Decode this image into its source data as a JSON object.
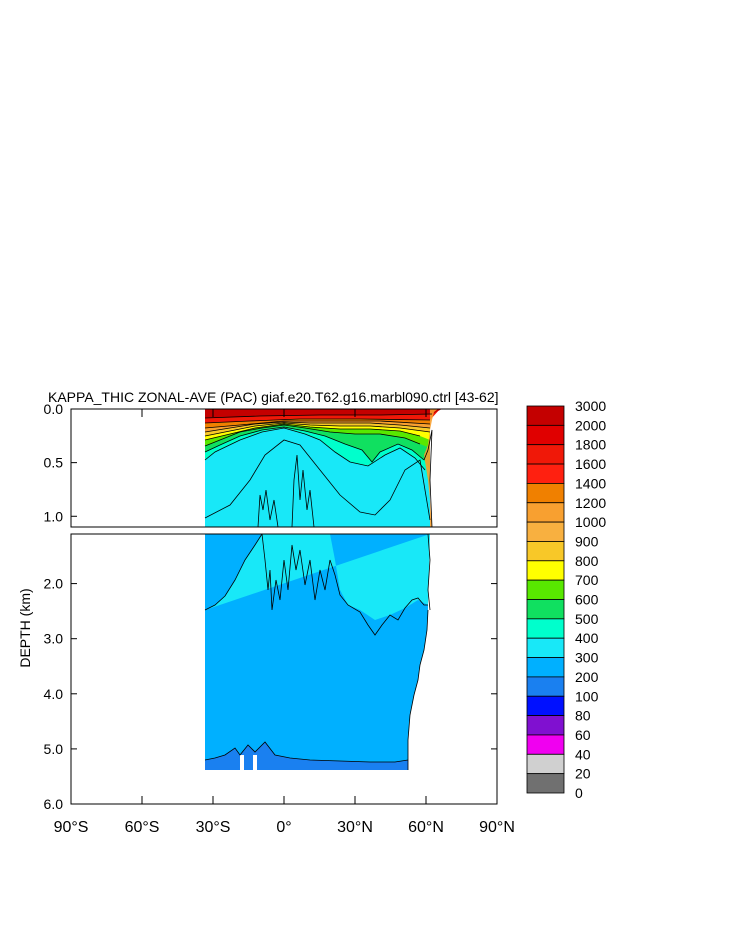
{
  "chart_data": {
    "type": "heatmap",
    "title": "KAPPA_THIC ZONAL-AVE (PAC) giaf.e20.T62.g16.marbl090.ctrl [43-62]",
    "xlabel": "",
    "ylabel": "DEPTH (km)",
    "x_ticks": [
      "90°S",
      "60°S",
      "30°S",
      "0°",
      "30°N",
      "60°N",
      "90°N"
    ],
    "x_tick_values": [
      -90,
      -60,
      -30,
      0,
      30,
      60,
      90
    ],
    "xlim": [
      -90,
      90
    ],
    "upper_panel": {
      "ylim": [
        0.0,
        1.1
      ],
      "y_ticks": [
        "0.0",
        "0.5",
        "1.0"
      ],
      "y_tick_values": [
        0.0,
        0.5,
        1.0
      ]
    },
    "lower_panel": {
      "ylim": [
        1.1,
        6.0
      ],
      "y_ticks": [
        "2.0",
        "3.0",
        "4.0",
        "5.0",
        "6.0"
      ],
      "y_tick_values": [
        2.0,
        3.0,
        4.0,
        5.0,
        6.0
      ]
    },
    "data_extent": {
      "lat_min": -33,
      "lat_max": 61
    },
    "colorbar": {
      "labels": [
        "3000",
        "2000",
        "1800",
        "1600",
        "1400",
        "1200",
        "1000",
        "900",
        "800",
        "700",
        "600",
        "500",
        "400",
        "300",
        "200",
        "100",
        "80",
        "60",
        "40",
        "20",
        "0"
      ],
      "colors": [
        "#c40000",
        "#e00000",
        "#f01808",
        "#ff2010",
        "#f08000",
        "#f8a030",
        "#f8b040",
        "#f8c828",
        "#ffff00",
        "#58e800",
        "#10e060",
        "#00ffcc",
        "#18e8f8",
        "#00b0ff",
        "#1a80f0",
        "#0010ff",
        "#8010d0",
        "#f000f0",
        "#d0d0d0",
        "#707070"
      ]
    }
  }
}
